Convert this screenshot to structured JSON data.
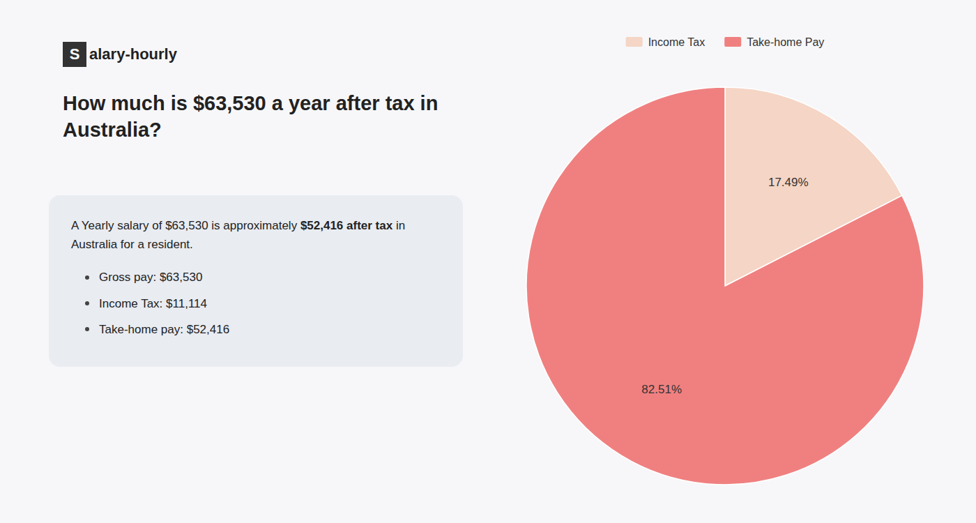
{
  "chart_data": {
    "type": "pie",
    "title": "How much is $63,530 a year after tax in Australia?",
    "annotations": [
      "S",
      "alary-hourly",
      "A Yearly salary of $63,530 is approximately ",
      "$52,416 after tax",
      " in",
      "Australia for a resident.",
      "Gross pay: $63,530",
      "Income Tax: $11,114",
      "Take-home pay: $52,416"
    ],
    "categories": [
      "Income Tax",
      "Take-home Pay"
    ],
    "values": [
      17.49,
      82.51
    ],
    "value_labels": [
      "17.49%",
      "82.51%"
    ],
    "colors": [
      "#f5d5c5",
      "#f08080"
    ],
    "data_labels": true,
    "legend": "top"
  }
}
